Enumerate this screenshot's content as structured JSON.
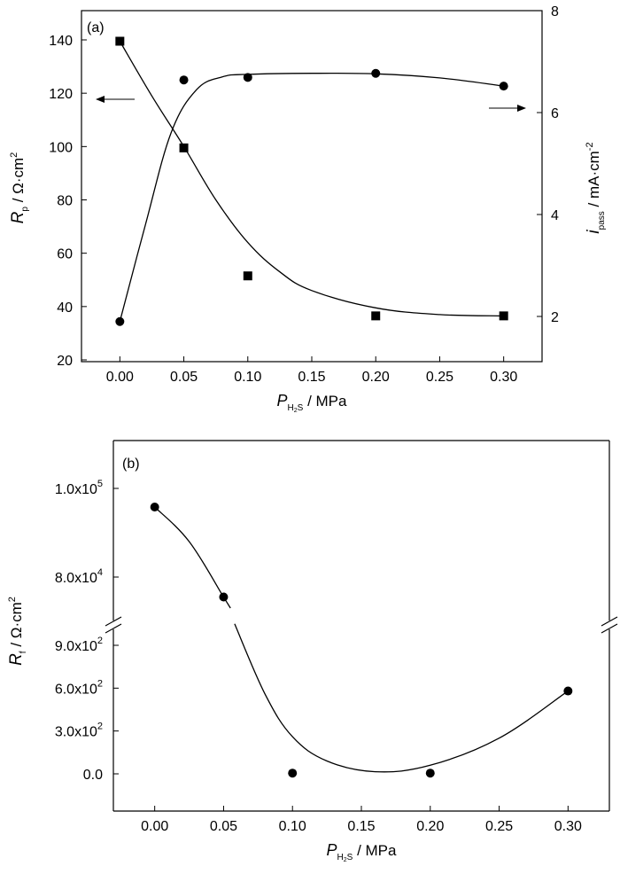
{
  "chart_data": [
    {
      "type": "scatter",
      "panel_label": "(a)",
      "xlabel": {
        "symbol": "P",
        "subscript": "H",
        "subscript2": "S",
        "sub_digit": "2",
        "unit": " / MPa"
      },
      "x_ticks": [
        "0.00",
        "0.05",
        "0.10",
        "0.15",
        "0.20",
        "0.25",
        "0.30"
      ],
      "xlim": [
        -0.03,
        0.33
      ],
      "ylabel_left": {
        "symbol": "R",
        "subscript": "p",
        "unit": " / Ω·cm",
        "sup": "2"
      },
      "ylim_left": [
        20,
        150
      ],
      "y_ticks_left": [
        "20",
        "40",
        "60",
        "80",
        "100",
        "120",
        "140"
      ],
      "ylabel_right": {
        "symbol": "i",
        "subscript": "pass",
        "unit": " / mA·cm",
        "sup": "-2"
      },
      "ylim_right": [
        0.95,
        8
      ],
      "y_ticks_right": [
        "2",
        "4",
        "6",
        "8"
      ],
      "series": [
        {
          "marker": "square",
          "axis": "left",
          "arrow": "left",
          "x": [
            0.0,
            0.05,
            0.1,
            0.2,
            0.3
          ],
          "y": [
            139.5,
            99.5,
            51.5,
            36.5,
            36.5
          ]
        },
        {
          "marker": "circle",
          "axis": "right",
          "arrow": "right",
          "x": [
            0.0,
            0.05,
            0.1,
            0.2,
            0.3
          ],
          "y": [
            1.9,
            6.64,
            6.69,
            6.77,
            6.52
          ]
        }
      ]
    },
    {
      "type": "scatter",
      "panel_label": "(b)",
      "xlabel": {
        "symbol": "P",
        "subscript": "H",
        "subscript2": "S",
        "sub_digit": "2",
        "unit": " / MPa"
      },
      "x_ticks": [
        "0.00",
        "0.05",
        "0.10",
        "0.15",
        "0.20",
        "0.25",
        "0.30"
      ],
      "xlim": [
        -0.03,
        0.33
      ],
      "ylabel_left": {
        "symbol": "R",
        "subscript": "f",
        "unit": " / Ω·cm",
        "sup": "2"
      },
      "y_axis_break": true,
      "y_ticks_lower": [
        {
          "value": 0,
          "mantissa": "0.0",
          "exp": ""
        },
        {
          "value": 300,
          "mantissa": "3.0x10",
          "exp": "2"
        },
        {
          "value": 600,
          "mantissa": "6.0x10",
          "exp": "2"
        },
        {
          "value": 900,
          "mantissa": "9.0x10",
          "exp": "2"
        }
      ],
      "y_ticks_upper": [
        {
          "value": 80000,
          "mantissa": "8.0x10",
          "exp": "4"
        },
        {
          "value": 100000,
          "mantissa": "1.0x10",
          "exp": "5"
        }
      ],
      "ylim_lower": [
        -270,
        1050
      ],
      "ylim_upper": [
        73000,
        108000
      ],
      "series": [
        {
          "marker": "circle",
          "x": [
            0.0,
            0.05,
            0.1,
            0.2,
            0.3
          ],
          "y": [
            95800,
            75500,
            5,
            5,
            580
          ]
        }
      ]
    }
  ]
}
